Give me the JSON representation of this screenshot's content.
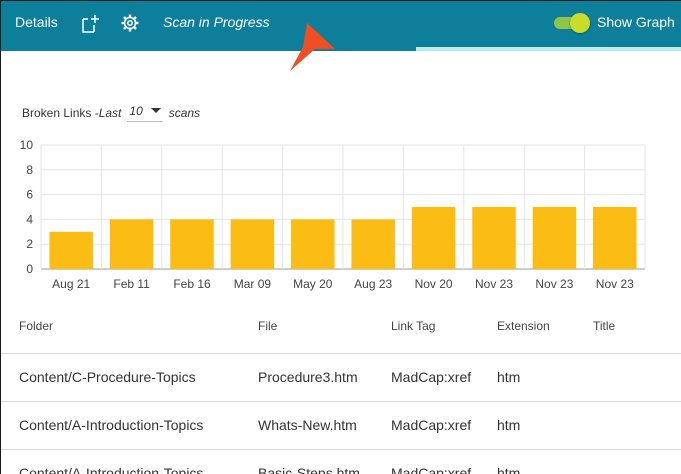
{
  "toolbar": {
    "details_label": "Details",
    "status_text": "Scan in Progress",
    "show_graph_label": "Show Graph",
    "show_graph_on": true,
    "accent": "#0e7f9b",
    "scan_progress": 0.61
  },
  "filter": {
    "prefix": "Broken Links - ",
    "last_label": "Last",
    "count_value": "10",
    "suffix": "scans"
  },
  "chart_data": {
    "type": "bar",
    "categories": [
      "Aug 21",
      "Feb 11",
      "Feb 16",
      "Mar 09",
      "May 20",
      "Aug 23",
      "Nov 20",
      "Nov 23",
      "Nov 23",
      "Nov 23"
    ],
    "values": [
      3,
      4,
      4,
      4,
      4,
      4,
      5,
      5,
      5,
      5
    ],
    "ylim": [
      0,
      10
    ],
    "yticks": [
      "0",
      "2",
      "4",
      "6",
      "8",
      "10"
    ],
    "grid": true,
    "bar_color": "#fbbc14"
  },
  "table": {
    "columns": [
      "Folder",
      "File",
      "Link Tag",
      "Extension",
      "Title"
    ],
    "rows": [
      {
        "folder": "Content/C-Procedure-Topics",
        "file": "Procedure3.htm",
        "tag": "MadCap:xref",
        "ext": "htm",
        "title": ""
      },
      {
        "folder": "Content/A-Introduction-Topics",
        "file": "Whats-New.htm",
        "tag": "MadCap:xref",
        "ext": "htm",
        "title": ""
      },
      {
        "folder": "Content/A-Introduction-Topics",
        "file": "Basic-Steps.htm",
        "tag": "MadCap:xref",
        "ext": "htm",
        "title": ""
      }
    ]
  }
}
